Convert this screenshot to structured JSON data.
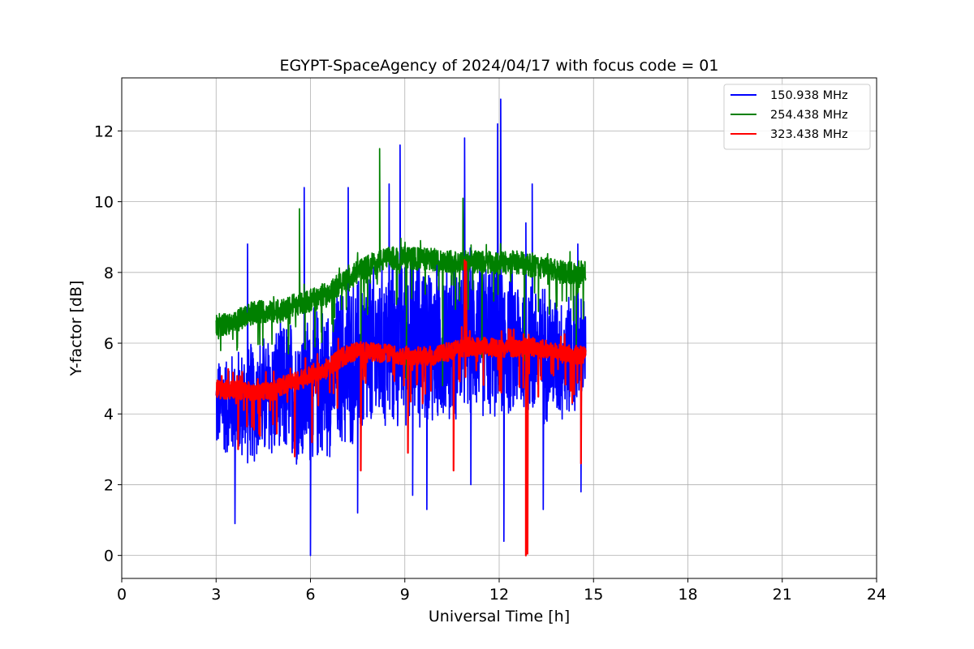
{
  "chart_data": {
    "type": "line",
    "title": "EGYPT-SpaceAgency of 2024/04/17 with focus code = 01",
    "xlabel": "Universal Time [h]",
    "ylabel": "Y-factor [dB]",
    "xlim": [
      0,
      24
    ],
    "ylim": [
      -0.65,
      13.5
    ],
    "xticks": [
      0,
      3,
      6,
      9,
      12,
      15,
      18,
      21,
      24
    ],
    "yticks": [
      0,
      2,
      4,
      6,
      8,
      10,
      12
    ],
    "grid": true,
    "legend_position": "top-right",
    "series": [
      {
        "name": "150.938 MHz",
        "color": "#0000ff",
        "x_range": [
          3.0,
          14.75
        ],
        "trend": [
          [
            3.0,
            4.2
          ],
          [
            4.0,
            4.3
          ],
          [
            5.0,
            4.6
          ],
          [
            6.0,
            4.7
          ],
          [
            7.0,
            5.3
          ],
          [
            8.0,
            5.7
          ],
          [
            9.0,
            6.2
          ],
          [
            10.0,
            6.0
          ],
          [
            11.0,
            6.3
          ],
          [
            12.0,
            6.1
          ],
          [
            13.0,
            5.8
          ],
          [
            14.0,
            5.6
          ],
          [
            14.75,
            5.8
          ]
        ],
        "spread": [
          [
            3.0,
            1.5
          ],
          [
            5.0,
            2.2
          ],
          [
            7.0,
            2.6
          ],
          [
            9.0,
            2.8
          ],
          [
            11.0,
            2.6
          ],
          [
            13.0,
            2.3
          ],
          [
            14.75,
            1.8
          ]
        ],
        "peaks": [
          [
            4.0,
            8.8
          ],
          [
            5.8,
            10.4
          ],
          [
            7.2,
            10.4
          ],
          [
            8.5,
            10.5
          ],
          [
            8.85,
            11.6
          ],
          [
            10.9,
            11.8
          ],
          [
            11.95,
            12.2
          ],
          [
            12.05,
            12.9
          ],
          [
            12.85,
            9.4
          ],
          [
            13.05,
            10.5
          ],
          [
            14.5,
            8.8
          ]
        ],
        "dips": [
          [
            3.6,
            0.9
          ],
          [
            6.0,
            0.0
          ],
          [
            7.5,
            1.2
          ],
          [
            9.25,
            1.7
          ],
          [
            9.7,
            1.3
          ],
          [
            11.1,
            2.0
          ],
          [
            12.15,
            0.4
          ],
          [
            13.4,
            1.3
          ],
          [
            14.6,
            1.8
          ]
        ]
      },
      {
        "name": "254.438 MHz",
        "color": "#008000",
        "x_range": [
          3.0,
          14.75
        ],
        "trend": [
          [
            3.0,
            6.5
          ],
          [
            3.6,
            6.55
          ],
          [
            3.9,
            6.8
          ],
          [
            4.5,
            6.9
          ],
          [
            5.0,
            6.9
          ],
          [
            5.5,
            7.1
          ],
          [
            6.0,
            7.2
          ],
          [
            6.5,
            7.4
          ],
          [
            7.0,
            7.7
          ],
          [
            7.5,
            8.0
          ],
          [
            8.0,
            8.25
          ],
          [
            8.5,
            8.4
          ],
          [
            9.0,
            8.4
          ],
          [
            10.0,
            8.35
          ],
          [
            11.0,
            8.3
          ],
          [
            12.0,
            8.25
          ],
          [
            12.5,
            8.3
          ],
          [
            13.0,
            8.2
          ],
          [
            14.0,
            8.0
          ],
          [
            14.75,
            8.0
          ]
        ],
        "noise": 0.15,
        "peaks": [
          [
            5.65,
            9.8
          ],
          [
            8.2,
            11.5
          ],
          [
            9.5,
            8.9
          ],
          [
            10.85,
            10.1
          ]
        ],
        "dips": [
          [
            5.3,
            5.7
          ],
          [
            7.6,
            5.3
          ],
          [
            9.05,
            5.0
          ],
          [
            10.2,
            4.8
          ],
          [
            11.45,
            5.6
          ],
          [
            12.8,
            5.5
          ],
          [
            14.45,
            5.8
          ]
        ]
      },
      {
        "name": "323.438 MHz",
        "color": "#ff0000",
        "x_range": [
          3.0,
          14.75
        ],
        "trend": [
          [
            3.0,
            4.7
          ],
          [
            4.0,
            4.65
          ],
          [
            4.8,
            4.65
          ],
          [
            5.2,
            4.85
          ],
          [
            5.8,
            5.0
          ],
          [
            6.5,
            5.3
          ],
          [
            7.0,
            5.6
          ],
          [
            7.5,
            5.8
          ],
          [
            8.0,
            5.75
          ],
          [
            9.0,
            5.65
          ],
          [
            10.0,
            5.65
          ],
          [
            10.5,
            5.8
          ],
          [
            11.0,
            5.9
          ],
          [
            11.5,
            5.9
          ],
          [
            12.0,
            5.85
          ],
          [
            13.0,
            5.9
          ],
          [
            13.5,
            5.85
          ],
          [
            14.0,
            5.7
          ],
          [
            14.75,
            5.65
          ]
        ],
        "noise": 0.12,
        "peaks": [
          [
            10.9,
            8.35
          ],
          [
            10.95,
            8.3
          ],
          [
            12.3,
            6.4
          ]
        ],
        "dips": [
          [
            3.7,
            3.0
          ],
          [
            5.5,
            2.8
          ],
          [
            6.05,
            3.2
          ],
          [
            7.6,
            2.4
          ],
          [
            9.1,
            2.9
          ],
          [
            10.55,
            2.4
          ],
          [
            12.85,
            0.0
          ],
          [
            12.9,
            0.05
          ],
          [
            14.6,
            2.6
          ]
        ]
      }
    ]
  }
}
